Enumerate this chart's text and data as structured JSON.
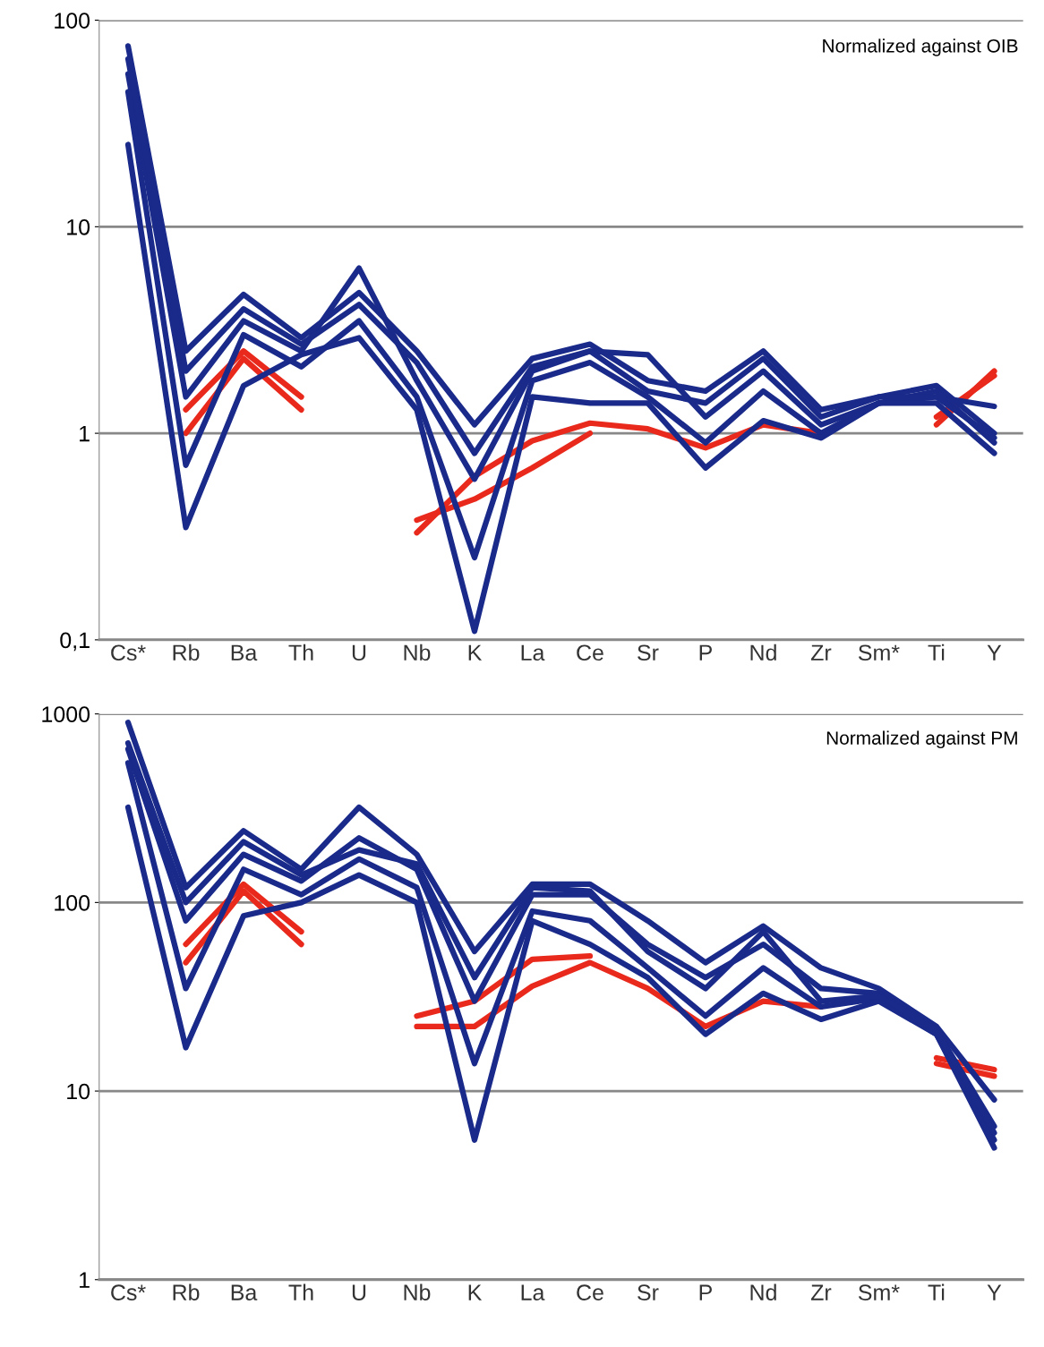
{
  "chart_data": [
    {
      "type": "line",
      "log": "y",
      "grid": "y",
      "legend": false,
      "marker": "none",
      "line_style": "solid",
      "categories": [
        "Cs*",
        "Rb",
        "Ba",
        "Th",
        "U",
        "Nb",
        "K",
        "La",
        "Ce",
        "Sr",
        "P",
        "Nd",
        "Zr",
        "Sm*",
        "Ti",
        "Y"
      ],
      "ylim": [
        0.1,
        100
      ],
      "yticks": [
        {
          "value": 0.1,
          "label": "0,1"
        },
        1,
        10,
        100
      ],
      "annotations": [
        "Normalized against OIB"
      ],
      "series": [
        {
          "color": "#e8291c",
          "values": [
            null,
            1.0,
            2.3,
            1.3,
            null,
            0.33,
            0.62,
            0.92,
            1.12,
            1.05,
            0.85,
            1.1,
            1.0,
            null,
            1.1,
            2.0
          ]
        },
        {
          "color": "#e8291c",
          "values": [
            null,
            1.3,
            2.5,
            1.5,
            null,
            0.38,
            0.48,
            0.68,
            1.0,
            null,
            null,
            null,
            null,
            null,
            1.2,
            1.9
          ]
        },
        {
          "color": "#1a2a8a",
          "values": [
            75,
            2.5,
            4.7,
            2.9,
            4.8,
            2.5,
            1.1,
            2.3,
            2.7,
            1.8,
            1.6,
            2.5,
            1.3,
            1.5,
            1.7,
            1.0
          ]
        },
        {
          "color": "#1a2a8a",
          "values": [
            55,
            1.5,
            3.5,
            2.5,
            6.3,
            1.8,
            0.6,
            2.0,
            2.5,
            2.4,
            1.2,
            2.0,
            1.1,
            1.4,
            1.5,
            1.35
          ]
        },
        {
          "color": "#1a2a8a",
          "values": [
            45,
            0.7,
            3.0,
            2.1,
            3.5,
            1.5,
            0.25,
            1.8,
            2.2,
            1.5,
            0.9,
            1.6,
            1.0,
            1.4,
            1.6,
            0.9
          ]
        },
        {
          "color": "#1a2a8a",
          "values": [
            25,
            0.35,
            1.7,
            2.4,
            2.9,
            1.3,
            0.11,
            1.5,
            1.4,
            1.4,
            0.68,
            1.15,
            0.95,
            1.4,
            1.4,
            0.8
          ]
        },
        {
          "color": "#1a2a8a",
          "values": [
            65,
            2.0,
            4.0,
            2.7,
            4.2,
            2.2,
            0.8,
            2.1,
            2.5,
            1.6,
            1.4,
            2.3,
            1.2,
            1.5,
            1.5,
            0.95
          ]
        }
      ]
    },
    {
      "type": "line",
      "log": "y",
      "grid": "y",
      "legend": false,
      "marker": "none",
      "line_style": "solid",
      "categories": [
        "Cs*",
        "Rb",
        "Ba",
        "Th",
        "U",
        "Nb",
        "K",
        "La",
        "Ce",
        "Sr",
        "P",
        "Nd",
        "Zr",
        "Sm*",
        "Ti",
        "Y"
      ],
      "ylim": [
        1,
        1000
      ],
      "yticks": [
        1,
        10,
        100,
        1000
      ],
      "annotations": [
        "Normalized against PM"
      ],
      "series": [
        {
          "color": "#e8291c",
          "values": [
            null,
            48,
            115,
            60,
            null,
            22,
            22,
            36,
            48,
            35,
            22,
            30,
            28,
            null,
            14,
            12
          ]
        },
        {
          "color": "#e8291c",
          "values": [
            null,
            60,
            125,
            70,
            null,
            25,
            30,
            50,
            52,
            null,
            null,
            null,
            null,
            null,
            15,
            13
          ]
        },
        {
          "color": "#1a2a8a",
          "values": [
            900,
            120,
            240,
            150,
            320,
            180,
            55,
            125,
            125,
            80,
            48,
            75,
            45,
            35,
            22,
            9
          ]
        },
        {
          "color": "#1a2a8a",
          "values": [
            650,
            80,
            180,
            130,
            220,
            150,
            30,
            110,
            110,
            60,
            40,
            60,
            35,
            33,
            21,
            6.5
          ]
        },
        {
          "color": "#1a2a8a",
          "values": [
            550,
            35,
            150,
            110,
            170,
            120,
            14,
            90,
            80,
            45,
            25,
            45,
            28,
            31,
            20,
            5.5
          ]
        },
        {
          "color": "#1a2a8a",
          "values": [
            320,
            17,
            85,
            100,
            140,
            100,
            5.5,
            80,
            60,
            40,
            20,
            33,
            24,
            30,
            20,
            5
          ]
        },
        {
          "color": "#1a2a8a",
          "values": [
            700,
            100,
            210,
            140,
            190,
            160,
            40,
            120,
            115,
            55,
            35,
            70,
            30,
            32,
            21,
            6
          ]
        }
      ]
    }
  ]
}
